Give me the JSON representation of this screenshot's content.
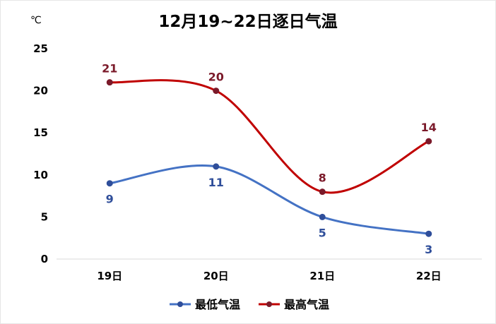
{
  "chart_data": {
    "type": "line",
    "title": "12月19~22日逐日气温",
    "unit_label": "℃",
    "categories": [
      "19日",
      "20日",
      "21日",
      "22日"
    ],
    "ylim": [
      0,
      25
    ],
    "yticks": [
      0,
      5,
      10,
      15,
      20,
      25
    ],
    "grid": false,
    "legend_position": "bottom",
    "series": [
      {
        "name": "最低气温",
        "values": [
          9,
          11,
          5,
          3
        ],
        "color": "#4472C4",
        "label_color": "#2F4E9A",
        "label_position": "below"
      },
      {
        "name": "最高气温",
        "values": [
          21,
          20,
          8,
          14
        ],
        "color": "#C00000",
        "label_color": "#7B1A2A",
        "label_position": "above"
      }
    ]
  }
}
